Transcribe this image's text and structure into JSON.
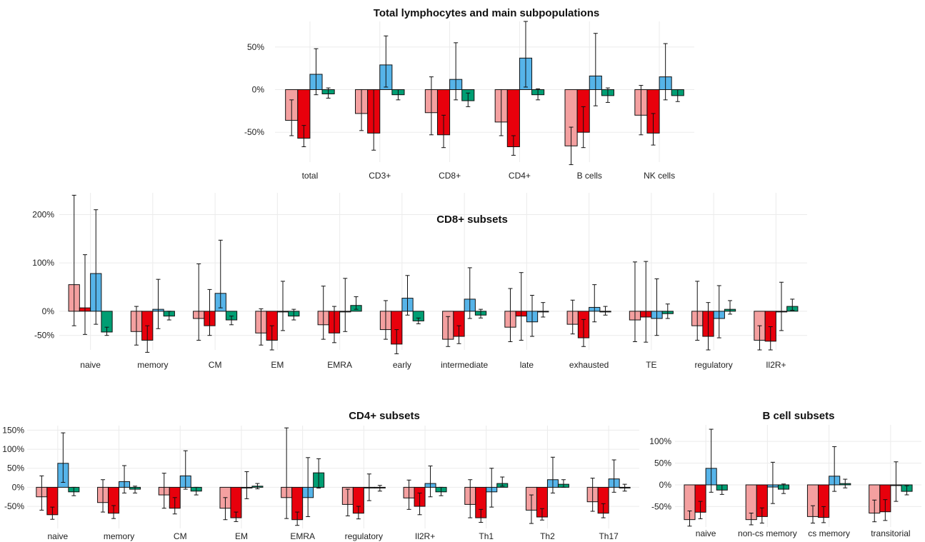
{
  "colors": {
    "s1": "#f4a0a0",
    "s2": "#e8000c",
    "s3": "#56b4e9",
    "s4": "#009e73",
    "stroke": "#111111",
    "grid": "#ebebeb"
  },
  "chart_data": [
    {
      "type": "bar",
      "title": "Total lymphocytes and main subpopulations",
      "xlabel": "",
      "ylabel": "",
      "ylim": [
        -85,
        80
      ],
      "yticks": [
        -50,
        0,
        50
      ],
      "ytick_labels": [
        "-50%",
        "0%",
        "50%"
      ],
      "categories": [
        "total",
        "CD3+",
        "CD8+",
        "CD4+",
        "B cells",
        "NK cells"
      ],
      "series": [
        {
          "values": [
            -36,
            -28,
            -27,
            -38,
            -66,
            -30
          ],
          "err_low": [
            18,
            20,
            26,
            16,
            22,
            23
          ],
          "err_high": [
            24,
            28,
            42,
            38,
            22,
            35
          ]
        },
        {
          "values": [
            -57,
            -51,
            -53,
            -67,
            -50,
            -51
          ],
          "err_low": [
            10,
            20,
            15,
            10,
            18,
            14
          ],
          "err_high": [
            15,
            51,
            23,
            13,
            30,
            23
          ]
        },
        {
          "values": [
            18,
            29,
            12,
            37,
            16,
            15
          ],
          "err_low": [
            24,
            26,
            24,
            34,
            35,
            27
          ],
          "err_high": [
            30,
            34,
            43,
            43,
            50,
            39
          ]
        },
        {
          "values": [
            -5,
            -6,
            -13,
            -6,
            -7,
            -7
          ],
          "err_low": [
            5,
            6,
            7,
            6,
            8,
            7
          ],
          "err_high": [
            7,
            6,
            9,
            7,
            9,
            7
          ]
        }
      ]
    },
    {
      "type": "bar",
      "title": "CD8+ subsets",
      "xlabel": "",
      "ylabel": "",
      "ylim": [
        -80,
        245
      ],
      "yticks": [
        -50,
        0,
        100,
        200
      ],
      "ytick_labels": [
        "-50%",
        "0%",
        "100%",
        "200%"
      ],
      "categories": [
        "naive",
        "memory",
        "CM",
        "EM",
        "EMRA",
        "early",
        "intermediate",
        "late",
        "exhausted",
        "TE",
        "regulatory",
        "Il2R+"
      ],
      "series": [
        {
          "values": [
            55,
            -42,
            -15,
            -45,
            -28,
            -38,
            -58,
            -33,
            -27,
            -18,
            -30,
            -60
          ],
          "err_low": [
            85,
            28,
            45,
            25,
            30,
            20,
            15,
            30,
            20,
            45,
            30,
            20
          ],
          "err_high": [
            185,
            52,
            113,
            50,
            80,
            60,
            47,
            80,
            50,
            120,
            92,
            30
          ]
        },
        {
          "values": [
            7,
            -60,
            -30,
            -60,
            -45,
            -68,
            -52,
            -10,
            -55,
            -12,
            -52,
            -62
          ],
          "err_low": [
            55,
            25,
            20,
            20,
            20,
            20,
            15,
            50,
            18,
            52,
            28,
            18
          ],
          "err_high": [
            110,
            30,
            75,
            30,
            55,
            30,
            22,
            90,
            38,
            115,
            70,
            30
          ]
        },
        {
          "values": [
            78,
            4,
            37,
            0,
            0,
            27,
            25,
            -22,
            8,
            -15,
            -15,
            0
          ],
          "err_low": [
            105,
            40,
            30,
            40,
            42,
            35,
            40,
            30,
            30,
            35,
            40,
            40
          ],
          "err_high": [
            132,
            62,
            110,
            62,
            68,
            47,
            65,
            55,
            47,
            82,
            68,
            60
          ]
        },
        {
          "values": [
            -43,
            -10,
            -18,
            -10,
            12,
            -20,
            -8,
            0,
            0,
            -5,
            4,
            10
          ],
          "err_low": [
            7,
            8,
            10,
            8,
            8,
            6,
            6,
            12,
            8,
            10,
            10,
            8
          ],
          "err_high": [
            10,
            10,
            8,
            14,
            18,
            6,
            12,
            18,
            10,
            20,
            18,
            15
          ]
        }
      ]
    },
    {
      "type": "bar",
      "title": "CD4+ subsets",
      "xlabel": "",
      "ylabel": "",
      "ylim": [
        -108,
        162
      ],
      "yticks": [
        -50,
        0,
        50,
        100,
        150
      ],
      "ytick_labels": [
        "-50%",
        "0%",
        "50%",
        "100%",
        "150%"
      ],
      "categories": [
        "naive",
        "memory",
        "CM",
        "EM",
        "EMRA",
        "regulatory",
        "Il2R+",
        "Th1",
        "Th2",
        "Th17"
      ],
      "series": [
        {
          "values": [
            -25,
            -40,
            -20,
            -55,
            -27,
            -45,
            -28,
            -45,
            -60,
            -38
          ],
          "err_low": [
            35,
            25,
            35,
            30,
            55,
            30,
            30,
            35,
            35,
            25
          ],
          "err_high": [
            55,
            60,
            57,
            28,
            183,
            40,
            47,
            65,
            40,
            62
          ]
        },
        {
          "values": [
            -72,
            -68,
            -55,
            -80,
            -85,
            -68,
            -50,
            -80,
            -78,
            -68
          ],
          "err_low": [
            12,
            14,
            15,
            10,
            15,
            15,
            22,
            12,
            8,
            12
          ],
          "err_high": [
            20,
            20,
            28,
            15,
            20,
            18,
            35,
            22,
            22,
            25
          ]
        },
        {
          "values": [
            63,
            15,
            30,
            0,
            -27,
            0,
            10,
            -12,
            20,
            22
          ],
          "err_low": [
            50,
            30,
            35,
            30,
            50,
            35,
            35,
            40,
            35,
            35
          ],
          "err_high": [
            80,
            42,
            66,
            41,
            105,
            35,
            46,
            62,
            59,
            50
          ]
        },
        {
          "values": [
            -12,
            -5,
            -10,
            3,
            38,
            0,
            -12,
            10,
            8,
            0
          ],
          "err_low": [
            10,
            10,
            10,
            7,
            40,
            10,
            10,
            7,
            8,
            10
          ],
          "err_high": [
            12,
            8,
            10,
            7,
            37,
            5,
            12,
            17,
            12,
            8
          ]
        }
      ]
    },
    {
      "type": "bar",
      "title": "B cell subsets",
      "xlabel": "",
      "ylabel": "",
      "ylim": [
        -97,
        138
      ],
      "yticks": [
        -50,
        0,
        50,
        100
      ],
      "ytick_labels": [
        "-50%",
        "0%",
        "50%",
        "100%"
      ],
      "categories": [
        "naive",
        "non-cs memory",
        "cs memory",
        "transitorial"
      ],
      "series": [
        {
          "values": [
            -80,
            -80,
            -73,
            -65
          ],
          "err_low": [
            15,
            12,
            15,
            20
          ],
          "err_high": [
            20,
            15,
            25,
            30
          ]
        },
        {
          "values": [
            -63,
            -73,
            -75,
            -62
          ],
          "err_low": [
            15,
            15,
            12,
            20
          ],
          "err_high": [
            25,
            20,
            25,
            28
          ]
        },
        {
          "values": [
            38,
            -5,
            20,
            0
          ],
          "err_low": [
            55,
            38,
            35,
            38
          ],
          "err_high": [
            90,
            57,
            68,
            53
          ]
        },
        {
          "values": [
            -12,
            -10,
            3,
            -15
          ],
          "err_low": [
            10,
            10,
            10,
            8
          ],
          "err_high": [
            12,
            12,
            10,
            13
          ]
        }
      ]
    }
  ]
}
